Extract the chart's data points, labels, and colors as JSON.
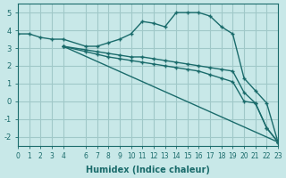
{
  "xlabel": "Humidex (Indice chaleur)",
  "ylabel": "",
  "bg_color": "#c8e8e8",
  "grid_color": "#a0c8c8",
  "line_color": "#1a6b6b",
  "xlim": [
    0,
    23
  ],
  "ylim": [
    -2.5,
    5.5
  ],
  "yticks": [
    -2,
    -1,
    0,
    1,
    2,
    3,
    4,
    5
  ],
  "xticks": [
    0,
    1,
    2,
    3,
    4,
    6,
    7,
    8,
    9,
    10,
    11,
    12,
    13,
    14,
    15,
    16,
    17,
    18,
    19,
    20,
    21,
    22,
    23
  ],
  "line1_x": [
    0,
    1,
    2,
    3,
    4,
    6,
    7,
    8,
    9,
    10,
    11,
    12,
    13,
    14,
    15,
    16,
    17,
    18,
    19,
    20,
    21,
    22,
    23
  ],
  "line1_y": [
    3.8,
    3.8,
    3.6,
    3.5,
    3.5,
    3.1,
    3.1,
    3.3,
    3.5,
    3.8,
    4.5,
    4.4,
    4.2,
    5.0,
    5.0,
    5.0,
    4.8,
    4.2,
    3.8,
    1.3,
    0.6,
    -0.1,
    -2.3
  ],
  "line2_x": [
    4,
    6,
    7,
    8,
    9,
    10,
    11,
    12,
    13,
    14,
    15,
    16,
    17,
    18,
    19,
    20,
    21,
    22,
    23
  ],
  "line2_y": [
    3.1,
    2.9,
    2.8,
    2.7,
    2.6,
    2.5,
    2.5,
    2.4,
    2.3,
    2.2,
    2.1,
    2.0,
    1.9,
    1.8,
    1.7,
    0.5,
    -0.1,
    -1.5,
    -2.3
  ],
  "line3_x": [
    4,
    6,
    7,
    8,
    9,
    10,
    11,
    12,
    13,
    14,
    15,
    16,
    17,
    18,
    19,
    20,
    21,
    22,
    23
  ],
  "line3_y": [
    3.1,
    2.8,
    2.65,
    2.5,
    2.4,
    2.3,
    2.2,
    2.1,
    2.0,
    1.9,
    1.8,
    1.7,
    1.5,
    1.3,
    1.1,
    0.0,
    -0.1,
    -1.5,
    -2.3
  ],
  "line4_x": [
    4,
    23
  ],
  "line4_y": [
    3.1,
    -2.3
  ]
}
